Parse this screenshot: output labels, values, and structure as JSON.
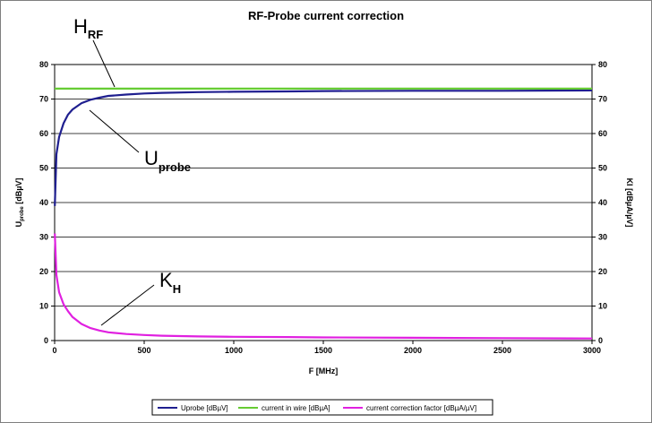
{
  "chart_data": {
    "type": "line",
    "title": "RF-Probe current correction",
    "xlabel": "F [MHz]",
    "ylabel_main": "U",
    "ylabel_sub": "probe",
    "ylabel_unit": " [dBµV]",
    "y2label": "KI [dBµA/µV]",
    "xlim": [
      0,
      3000
    ],
    "ylim": [
      0,
      80
    ],
    "y2lim": [
      0,
      80
    ],
    "x_ticks": [
      0,
      500,
      1000,
      1500,
      2000,
      2500,
      3000
    ],
    "y_ticks": [
      0,
      10,
      20,
      30,
      40,
      50,
      60,
      70,
      80
    ],
    "grid": "horizontal",
    "legend_position": "bottom",
    "series": [
      {
        "name": "Uprobe [dBµV]",
        "color": "#1f1f8f",
        "x": [
          1,
          10,
          25,
          50,
          75,
          100,
          150,
          200,
          250,
          300,
          400,
          500,
          600,
          800,
          1000,
          1300,
          1500,
          2000,
          2500,
          3000
        ],
        "y": [
          39,
          54,
          59,
          63,
          65.5,
          67,
          68.8,
          69.8,
          70.4,
          70.9,
          71.3,
          71.6,
          71.8,
          72,
          72.1,
          72.2,
          72.3,
          72.4,
          72.4,
          72.5
        ]
      },
      {
        "name": "current in wire [dBµA]",
        "color": "#66cc33",
        "x": [
          0,
          3000
        ],
        "y": [
          73,
          73
        ]
      },
      {
        "name": "current correction factor [dBµA/µV]",
        "color": "#e020e0",
        "x": [
          1,
          10,
          25,
          50,
          75,
          100,
          150,
          200,
          250,
          300,
          400,
          500,
          600,
          800,
          1000,
          1300,
          1500,
          2000,
          2500,
          3000
        ],
        "y": [
          31,
          19,
          14,
          10.5,
          8.5,
          6.8,
          4.8,
          3.6,
          2.9,
          2.4,
          1.9,
          1.6,
          1.4,
          1.2,
          1.1,
          1.0,
          0.9,
          0.8,
          0.7,
          0.6
        ]
      }
    ],
    "annotations": [
      {
        "main": "H",
        "sub": "RF",
        "target": "current in wire [dBµA]"
      },
      {
        "main": "U",
        "sub": "probe",
        "target": "Uprobe [dBµV]"
      },
      {
        "main": "K",
        "sub": "H",
        "target": "current correction factor [dBµA/µV]"
      }
    ]
  }
}
